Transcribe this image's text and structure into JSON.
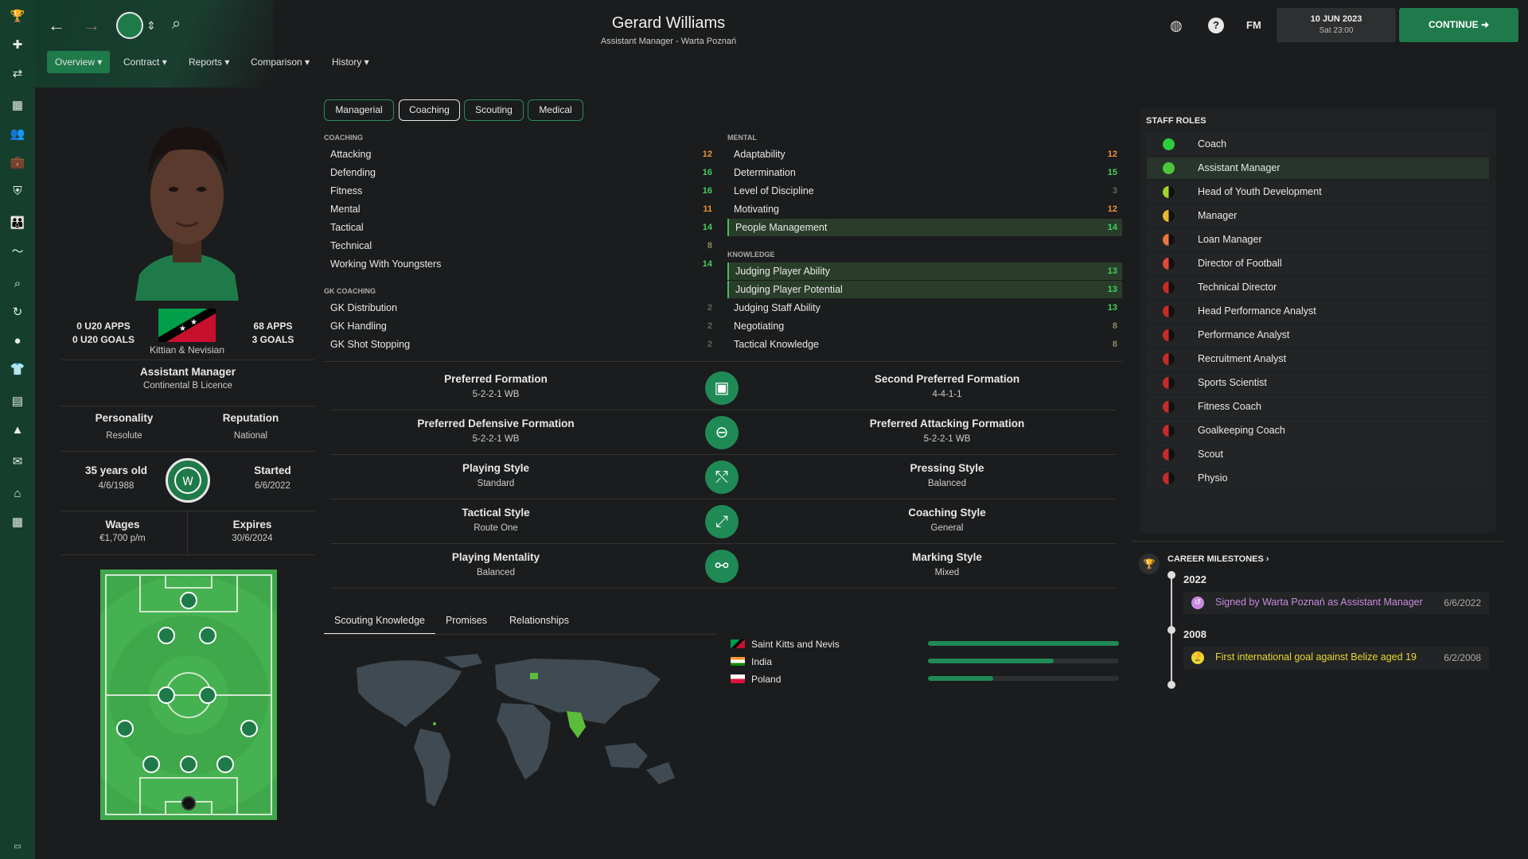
{
  "header": {
    "title": "Gerard Williams",
    "subtitle": "Assistant Manager - Warta Poznań",
    "date": "10 JUN 2023",
    "time": "Sat 23:00",
    "continue_label": "CONTINUE",
    "fm_label": "FM"
  },
  "nav": {
    "items": [
      "Overview",
      "Contract",
      "Reports",
      "Comparison",
      "History"
    ]
  },
  "profile": {
    "u20_apps": "0 U20 APPS",
    "u20_goals": "0 U20 GOALS",
    "apps": "68 APPS",
    "goals": "3 GOALS",
    "nationality": "Kittian & Nevisian",
    "role": "Assistant Manager",
    "licence": "Continental B Licence",
    "personality_label": "Personality",
    "personality": "Resolute",
    "reputation_label": "Reputation",
    "reputation": "National",
    "age": "35 years old",
    "dob": "4/6/1988",
    "started_label": "Started",
    "started": "6/6/2022",
    "wages_label": "Wages",
    "wages": "€1,700 p/m",
    "expires_label": "Expires",
    "expires": "30/6/2024"
  },
  "tabs": [
    "Managerial",
    "Coaching",
    "Scouting",
    "Medical"
  ],
  "coaching": {
    "header": "COACHING",
    "attrs": [
      {
        "name": "Attacking",
        "value": "12"
      },
      {
        "name": "Defending",
        "value": "16"
      },
      {
        "name": "Fitness",
        "value": "16"
      },
      {
        "name": "Mental",
        "value": "11"
      },
      {
        "name": "Tactical",
        "value": "14"
      },
      {
        "name": "Technical",
        "value": "8"
      },
      {
        "name": "Working With Youngsters",
        "value": "14"
      }
    ]
  },
  "gk_coaching": {
    "header": "GK COACHING",
    "attrs": [
      {
        "name": "GK Distribution",
        "value": "2"
      },
      {
        "name": "GK Handling",
        "value": "2"
      },
      {
        "name": "GK Shot Stopping",
        "value": "2"
      }
    ]
  },
  "mental": {
    "header": "MENTAL",
    "attrs": [
      {
        "name": "Adaptability",
        "value": "12"
      },
      {
        "name": "Determination",
        "value": "15"
      },
      {
        "name": "Level of Discipline",
        "value": "3"
      },
      {
        "name": "Motivating",
        "value": "12"
      },
      {
        "name": "People Management",
        "value": "14"
      }
    ]
  },
  "knowledge": {
    "header": "KNOWLEDGE",
    "attrs": [
      {
        "name": "Judging Player Ability",
        "value": "13"
      },
      {
        "name": "Judging Player Potential",
        "value": "13"
      },
      {
        "name": "Judging Staff Ability",
        "value": "13"
      },
      {
        "name": "Negotiating",
        "value": "8"
      },
      {
        "name": "Tactical Knowledge",
        "value": "8"
      }
    ]
  },
  "styles": [
    {
      "l_label": "Preferred Formation",
      "l_value": "5-2-2-1 WB",
      "r_label": "Second Preferred Formation",
      "r_value": "4-4-1-1",
      "icon": "formation-icon"
    },
    {
      "l_label": "Preferred Defensive Formation",
      "l_value": "5-2-2-1 WB",
      "r_label": "Preferred Attacking Formation",
      "r_value": "5-2-2-1 WB",
      "icon": "pitch-circle-icon"
    },
    {
      "l_label": "Playing Style",
      "l_value": "Standard",
      "r_label": "Pressing Style",
      "r_value": "Balanced",
      "icon": "tactics-icon"
    },
    {
      "l_label": "Tactical Style",
      "l_value": "Route One",
      "r_label": "Coaching Style",
      "r_value": "General",
      "icon": "arrows-icon"
    },
    {
      "l_label": "Playing Mentality",
      "l_value": "Balanced",
      "r_label": "Marking Style",
      "r_value": "Mixed",
      "icon": "marking-icon"
    }
  ],
  "bottom_tabs": [
    "Scouting Knowledge",
    "Promises",
    "Relationships"
  ],
  "scouting_knowledge": [
    {
      "country": "Saint Kitts and Nevis",
      "level": 1.0
    },
    {
      "country": "India",
      "level": 0.66
    },
    {
      "country": "Poland",
      "level": 0.34
    }
  ],
  "staff_roles": {
    "header": "STAFF ROLES",
    "roles": [
      {
        "name": "Coach",
        "color": "#2ecc40"
      },
      {
        "name": "Assistant Manager",
        "color": "#4cc63a"
      },
      {
        "name": "Head of Youth Development",
        "color": "#a5d22a"
      },
      {
        "name": "Manager",
        "color": "#e8b830"
      },
      {
        "name": "Loan Manager",
        "color": "#e8763a"
      },
      {
        "name": "Director of Football",
        "color": "#e04a3a"
      },
      {
        "name": "Technical Director",
        "color": "#c82a2a"
      },
      {
        "name": "Head Performance Analyst",
        "color": "#c82a2a"
      },
      {
        "name": "Performance Analyst",
        "color": "#c82a2a"
      },
      {
        "name": "Recruitment Analyst",
        "color": "#c82a2a"
      },
      {
        "name": "Sports Scientist",
        "color": "#c82a2a"
      },
      {
        "name": "Fitness Coach",
        "color": "#c82a2a"
      },
      {
        "name": "Goalkeeping Coach",
        "color": "#c82a2a"
      },
      {
        "name": "Scout",
        "color": "#c82a2a"
      },
      {
        "name": "Physio",
        "color": "#c82a2a"
      }
    ]
  },
  "milestones": {
    "header": "CAREER MILESTONES",
    "items": [
      {
        "year": "2022",
        "text": "Signed by Warta Poznań as Assistant Manager",
        "date": "6/6/2022",
        "color": "#c78ae0"
      },
      {
        "year": "2008",
        "text": "First international goal against Belize aged 19",
        "date": "6/2/2008",
        "color": "#e8d830"
      }
    ]
  },
  "colors": {
    "accent": "#1f8a55",
    "sidebar": "#153e2d",
    "high": "#3fd15a",
    "mid": "#e8943a"
  }
}
